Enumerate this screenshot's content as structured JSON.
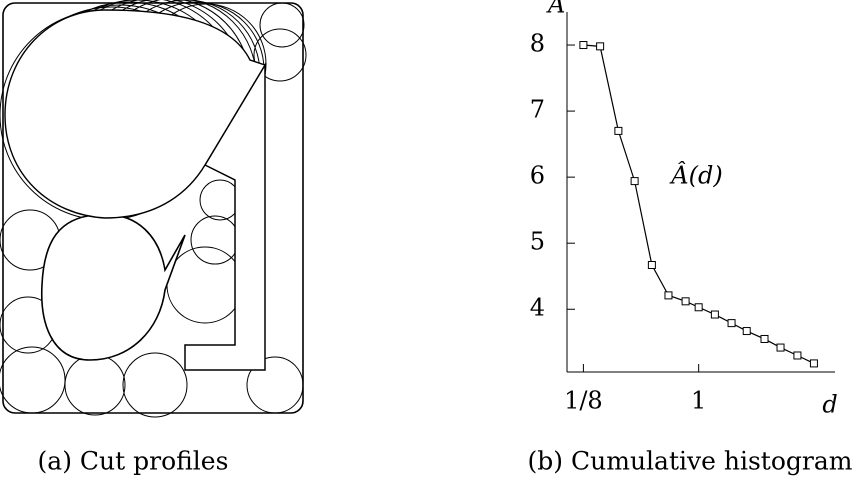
{
  "panel_a": {
    "caption": "(a) Cut profiles"
  },
  "chart_data": {
    "type": "line",
    "caption": "(b) Cumulative histogram",
    "x_label": "d",
    "y_label": "A",
    "annotation": "Â(d)",
    "x": [
      0.125,
      0.169,
      0.235,
      0.315,
      0.43,
      0.58,
      0.79,
      1,
      1.34,
      1.81,
      2.38,
      3.28,
      4.38,
      5.94,
      8
    ],
    "values": [
      8.0,
      7.98,
      6.7,
      5.94,
      4.67,
      4.21,
      4.12,
      4.03,
      3.92,
      3.79,
      3.67,
      3.55,
      3.42,
      3.3,
      3.18
    ],
    "color": "#000000",
    "xscale": "log",
    "xlim": [
      0.093,
      11.7
    ],
    "xticks": [
      {
        "value": 0.125,
        "label": "1/8"
      },
      1
    ],
    "ylim": [
      3.05,
      8.5
    ],
    "yticks": [
      4,
      5,
      6,
      7,
      8
    ],
    "grid": false
  }
}
